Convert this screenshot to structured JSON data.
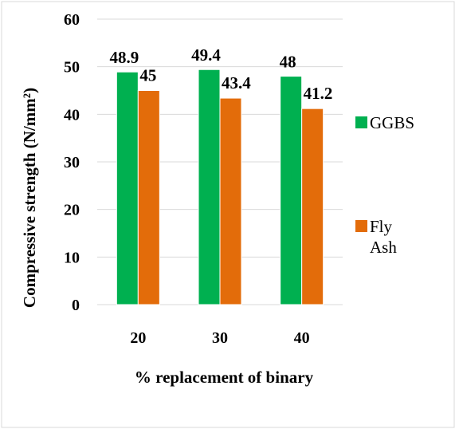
{
  "chart_data": {
    "type": "bar",
    "categories": [
      "20",
      "30",
      "40"
    ],
    "series": [
      {
        "name": "GGBS",
        "values": [
          48.9,
          49.4,
          48
        ],
        "color": "#00b050",
        "labels": [
          "48.9",
          "49.4",
          "48"
        ]
      },
      {
        "name": "Fly Ash",
        "values": [
          45,
          43.4,
          41.2
        ],
        "color": "#e36c0a",
        "labels": [
          "45",
          "43.4",
          "41.2"
        ]
      }
    ],
    "xlabel": "% replacement of binary",
    "ylabel": "Compressive strength  (N/mm²)",
    "ylim": [
      0,
      60
    ],
    "yticks": [
      "0",
      "10",
      "20",
      "30",
      "40",
      "50",
      "60"
    ],
    "grid": true,
    "legend_position": "right"
  }
}
